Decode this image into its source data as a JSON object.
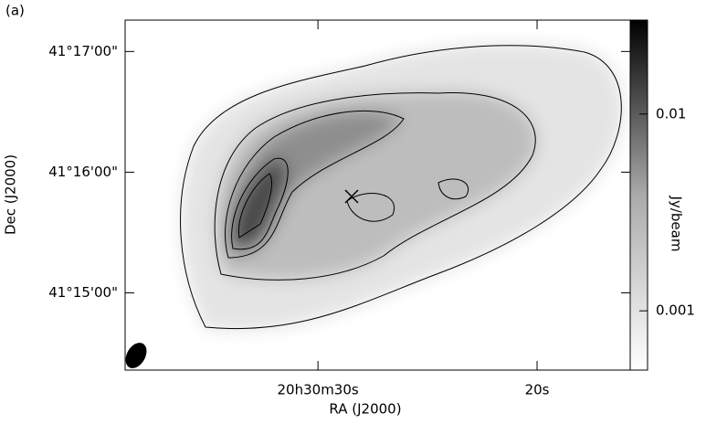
{
  "chart_data": {
    "type": "image",
    "panel_label": "(a)",
    "xlabel": "RA (J2000)",
    "ylabel": "Dec (J2000)",
    "colorbar_label": "Jy/beam",
    "colorbar_scale": "log",
    "xlim": [
      38.8,
      15.75
    ],
    "xticks": [
      {
        "value": 30,
        "label": "20h30m30s"
      },
      {
        "value": 20,
        "label": "20s"
      }
    ],
    "ylim": [
      14.36,
      17.26
    ],
    "yticks": [
      {
        "value": 15,
        "label": "41°15'00\""
      },
      {
        "value": 16,
        "label": "41°16'00\""
      },
      {
        "value": 17,
        "label": "41°17'00\""
      }
    ],
    "clim": [
      0.0005,
      0.03
    ],
    "cticks": [
      0.001,
      0.01
    ]
  }
}
